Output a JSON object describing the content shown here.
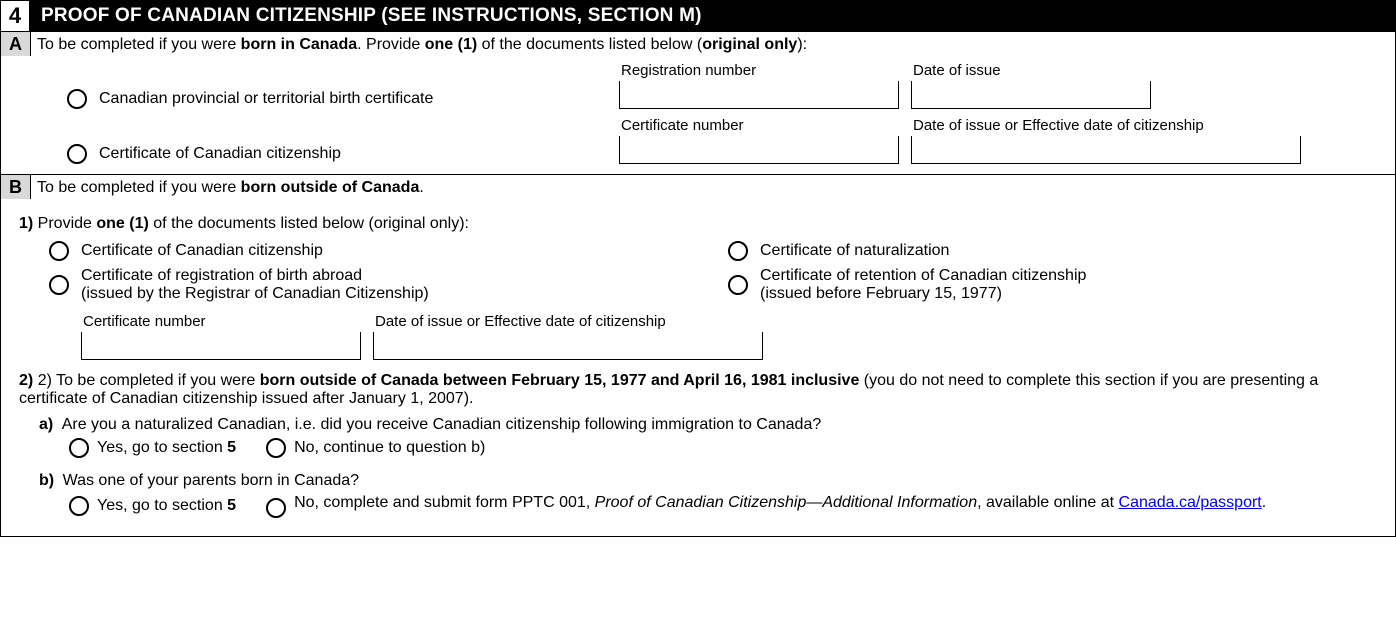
{
  "header": {
    "num": "4",
    "title": "PROOF OF CANADIAN CITIZENSHIP (SEE INSTRUCTIONS, SECTION M)"
  },
  "a": {
    "letter": "A",
    "intro_pre": "To be completed if you were ",
    "intro_bold1": "born in Canada",
    "intro_mid": ". Provide ",
    "intro_bold2": "one (1)",
    "intro_mid2": " of the documents listed below (",
    "intro_bold3": "original only",
    "intro_end": "):",
    "opt1": "Canadian provincial or territorial birth certificate",
    "opt2": "Certificate of Canadian citizenship",
    "f1": "Registration number",
    "f2": "Date of issue",
    "f3": "Certificate number",
    "f4": "Date of issue or Effective date of citizenship"
  },
  "b": {
    "letter": "B",
    "intro_pre": "To be completed if you were ",
    "intro_bold": "born outside of Canada",
    "intro_end": ".",
    "q1_pre": "1) Provide ",
    "q1_bold": "one (1)",
    "q1_end": " of the documents listed below (original only):",
    "o1": "Certificate of Canadian citizenship",
    "o2": "Certificate of naturalization",
    "o3a": "Certificate of registration of birth abroad",
    "o3b": "(issued by the Registrar of Canadian Citizenship)",
    "o4a": "Certificate of retention of Canadian citizenship",
    "o4b": "(issued before February 15, 1977)",
    "f1": "Certificate number",
    "f2": "Date of issue or Effective date of citizenship",
    "q2_pre": "2) To be completed if you were ",
    "q2_bold": "born outside of Canada between February 15, 1977 and April 16, 1981 inclusive",
    "q2_end": " (you do not need to complete this section if you are presenting a certificate of Canadian citizenship issued after January 1, 2007).",
    "qa_label": "a)",
    "qa_text": "Are you a naturalized Canadian, i.e. did you receive Canadian citizenship following immigration to Canada?",
    "qa_yes_pre": "Yes, go to section ",
    "qa_yes_bold": "5",
    "qa_no": "No, continue to question b)",
    "qb_label": "b)",
    "qb_text": "Was one of your parents born in Canada?",
    "qb_yes_pre": "Yes, go to section ",
    "qb_yes_bold": "5",
    "qb_no_pre": "No, complete and submit form PPTC 001, ",
    "qb_no_italic": "Proof of Canadian Citizenship—Additional Information",
    "qb_no_mid": ", available online at ",
    "qb_no_link": "Canada.ca/passport",
    "qb_no_end": "."
  }
}
